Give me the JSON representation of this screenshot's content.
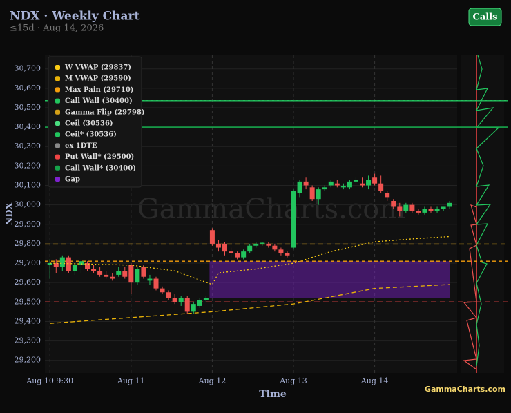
{
  "chart_data": {
    "type": "candlestick",
    "title": "NDX · Weekly Chart",
    "subtitle": "≤15d · Aug 14, 2026",
    "button": "Calls",
    "watermark": "GammaCharts.com",
    "brand": "GammaCharts.com",
    "ylabel": "NDX",
    "xlabel": "Time",
    "ylim": [
      29135,
      30770
    ],
    "yticks": [
      {
        "value": 29200,
        "label": "29,200"
      },
      {
        "value": 29300,
        "label": "29,300"
      },
      {
        "value": 29400,
        "label": "29,400"
      },
      {
        "value": 29500,
        "label": "29,500"
      },
      {
        "value": 29600,
        "label": "29,600"
      },
      {
        "value": 29700,
        "label": "29,700"
      },
      {
        "value": 29800,
        "label": "29,800"
      },
      {
        "value": 29900,
        "label": "29,900"
      },
      {
        "value": 30000,
        "label": "30,000"
      },
      {
        "value": 30100,
        "label": "30,100"
      },
      {
        "value": 30200,
        "label": "30,200"
      },
      {
        "value": 30300,
        "label": "30,300"
      },
      {
        "value": 30400,
        "label": "30,400"
      },
      {
        "value": 30500,
        "label": "30,500"
      },
      {
        "value": 30600,
        "label": "30,600"
      },
      {
        "value": 30700,
        "label": "30,700"
      }
    ],
    "xlim": [
      -0.8,
      65.2
    ],
    "xticks": [
      {
        "value": 0,
        "label": "Aug 10 9:30"
      },
      {
        "value": 13,
        "label": "Aug 11"
      },
      {
        "value": 26,
        "label": "Aug 12"
      },
      {
        "value": 39,
        "label": "Aug 13"
      },
      {
        "value": 52,
        "label": "Aug 14"
      }
    ],
    "grid": true,
    "up_color": "#22c55e",
    "down_color": "#ef5350",
    "candles": [
      [
        29690,
        29720,
        29620,
        29700
      ],
      [
        29700,
        29720,
        29650,
        29680
      ],
      [
        29680,
        29740,
        29660,
        29730
      ],
      [
        29730,
        29740,
        29650,
        29660
      ],
      [
        29660,
        29700,
        29640,
        29690
      ],
      [
        29690,
        29720,
        29650,
        29710
      ],
      [
        29700,
        29710,
        29660,
        29670
      ],
      [
        29670,
        29690,
        29650,
        29660
      ],
      [
        29660,
        29680,
        29630,
        29640
      ],
      [
        29640,
        29660,
        29620,
        29630
      ],
      [
        29630,
        29650,
        29610,
        29620
      ],
      [
        29640,
        29680,
        29630,
        29660
      ],
      [
        29660,
        29680,
        29620,
        29630
      ],
      [
        29690,
        29700,
        29540,
        29600
      ],
      [
        29600,
        29680,
        29590,
        29670
      ],
      [
        29680,
        29690,
        29620,
        29630
      ],
      [
        29610,
        29640,
        29590,
        29620
      ],
      [
        29620,
        29630,
        29560,
        29570
      ],
      [
        29570,
        29580,
        29540,
        29550
      ],
      [
        29550,
        29560,
        29510,
        29520
      ],
      [
        29520,
        29540,
        29490,
        29500
      ],
      [
        29500,
        29530,
        29480,
        29520
      ],
      [
        29520,
        29530,
        29440,
        29450
      ],
      [
        29450,
        29500,
        29440,
        29490
      ],
      [
        29480,
        29520,
        29470,
        29510
      ],
      [
        29510,
        29530,
        29500,
        29520
      ],
      [
        29870,
        29880,
        29790,
        29800
      ],
      [
        29800,
        29820,
        29760,
        29780
      ],
      [
        29800,
        29810,
        29740,
        29760
      ],
      [
        29760,
        29780,
        29730,
        29750
      ],
      [
        29750,
        29760,
        29720,
        29730
      ],
      [
        29730,
        29770,
        29720,
        29760
      ],
      [
        29760,
        29800,
        29750,
        29790
      ],
      [
        29790,
        29810,
        29780,
        29800
      ],
      [
        29800,
        29810,
        29790,
        29805
      ],
      [
        29800,
        29810,
        29780,
        29790
      ],
      [
        29790,
        29800,
        29760,
        29770
      ],
      [
        29770,
        29780,
        29740,
        29750
      ],
      [
        29750,
        29760,
        29730,
        29740
      ],
      [
        29780,
        30080,
        29770,
        30070
      ],
      [
        30060,
        30130,
        30040,
        30120
      ],
      [
        30120,
        30140,
        30080,
        30100
      ],
      [
        30090,
        30100,
        30020,
        30030
      ],
      [
        30030,
        30090,
        30000,
        30080
      ],
      [
        30080,
        30100,
        30070,
        30090
      ],
      [
        30100,
        30130,
        30090,
        30120
      ],
      [
        30110,
        30130,
        30090,
        30100
      ],
      [
        30090,
        30110,
        30080,
        30095
      ],
      [
        30090,
        30130,
        30080,
        30120
      ],
      [
        30120,
        30140,
        30110,
        30130
      ],
      [
        30110,
        30140,
        30090,
        30100
      ],
      [
        30100,
        30150,
        30080,
        30130
      ],
      [
        30140,
        30160,
        30100,
        30110
      ],
      [
        30110,
        30150,
        30060,
        30070
      ],
      [
        30060,
        30070,
        30020,
        30040
      ],
      [
        30020,
        30030,
        29980,
        29990
      ],
      [
        29990,
        30010,
        29940,
        29970
      ],
      [
        29970,
        30010,
        29960,
        30000
      ],
      [
        30000,
        30010,
        29960,
        29970
      ],
      [
        29970,
        29980,
        29950,
        29960
      ],
      [
        29960,
        29990,
        29950,
        29980
      ],
      [
        29980,
        29990,
        29960,
        29970
      ],
      [
        29970,
        29990,
        29960,
        29980
      ],
      [
        29980,
        29990,
        29970,
        29990
      ],
      [
        29990,
        30020,
        29980,
        30010
      ]
    ],
    "lines": [
      {
        "name": "W VWAP (29837)",
        "color": "#facc15",
        "dash": "2,3",
        "x": [
          0,
          13,
          20,
          26,
          27,
          33,
          39,
          45,
          52,
          58,
          64
        ],
        "values": [
          29700,
          29690,
          29660,
          29590,
          29650,
          29670,
          29700,
          29760,
          29810,
          29825,
          29837
        ]
      },
      {
        "name": "M VWAP (29590)",
        "color": "#eab308",
        "dash": "6,4",
        "x": [
          0,
          13,
          26,
          39,
          52,
          64
        ],
        "values": [
          29390,
          29420,
          29450,
          29490,
          29570,
          29590
        ]
      }
    ],
    "levels": [
      {
        "name": "Max Pain (29710)",
        "color": "#f59e0b",
        "dash": "5,4",
        "value": 29710
      },
      {
        "name": "Call Wall (30400)",
        "color": "#22c55e",
        "dash": "",
        "value": 30400
      },
      {
        "name": "Gamma Flip (29798)",
        "color": "#d4a017",
        "dash": "7,5",
        "value": 29798
      },
      {
        "name": "Ceil (30536)",
        "color": "#4ade80",
        "dash": "3,4",
        "value": 30536
      },
      {
        "name": "Ceil* (30536)",
        "color": "#22c55e",
        "dash": "",
        "value": 30536
      },
      {
        "name": "ex 1DTE",
        "color": "#888888",
        "dash": "",
        "value": null
      },
      {
        "name": "Put Wall* (29500)",
        "color": "#ef4444",
        "dash": "8,5",
        "value": 29500
      },
      {
        "name": "Call Wall* (30400)",
        "color": "#16a34a",
        "dash": "",
        "value": 30400
      }
    ],
    "gap": {
      "name": "Gap",
      "color": "#7e22ce",
      "start": 26,
      "end": 64,
      "low": 29520,
      "high": 29710
    }
  }
}
